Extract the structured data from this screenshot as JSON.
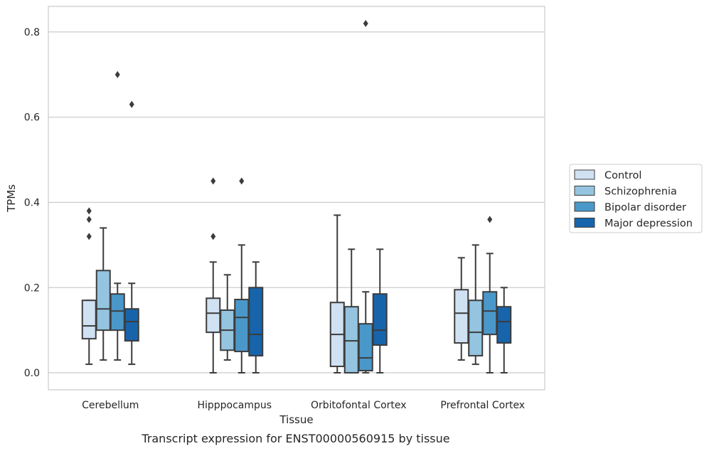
{
  "chart_data": {
    "type": "box",
    "title": "",
    "caption": "Transcript expression for ENST00000560915 by tissue",
    "xlabel": "Tissue",
    "ylabel": "TPMs",
    "ylim": [
      -0.04,
      0.86
    ],
    "yticks": [
      0.0,
      0.2,
      0.4,
      0.6,
      0.8
    ],
    "ytick_labels": [
      "0.0",
      "0.2",
      "0.4",
      "0.6",
      "0.8"
    ],
    "grid": true,
    "legend_position": "right",
    "categories": [
      "Cerebellum",
      "Hipppocampus",
      "Orbitofontal Cortex",
      "Prefrontal Cortex"
    ],
    "series": [
      {
        "name": "Control",
        "color": "#d0e1f2",
        "boxes": [
          {
            "whislo": 0.02,
            "q1": 0.08,
            "med": 0.11,
            "q3": 0.17,
            "whishi": 0.17,
            "fliers": [
              0.32,
              0.36,
              0.38
            ]
          },
          {
            "whislo": 0.0,
            "q1": 0.095,
            "med": 0.14,
            "q3": 0.175,
            "whishi": 0.26,
            "fliers": [
              0.32,
              0.45
            ]
          },
          {
            "whislo": 0.0,
            "q1": 0.015,
            "med": 0.09,
            "q3": 0.165,
            "whishi": 0.37,
            "fliers": []
          },
          {
            "whislo": 0.03,
            "q1": 0.07,
            "med": 0.14,
            "q3": 0.195,
            "whishi": 0.27,
            "fliers": []
          }
        ]
      },
      {
        "name": "Schizophrenia",
        "color": "#94c4df",
        "boxes": [
          {
            "whislo": 0.03,
            "q1": 0.1,
            "med": 0.15,
            "q3": 0.24,
            "whishi": 0.34,
            "fliers": []
          },
          {
            "whislo": 0.03,
            "q1": 0.053,
            "med": 0.1,
            "q3": 0.147,
            "whishi": 0.23,
            "fliers": []
          },
          {
            "whislo": 0.0,
            "q1": 0.0,
            "med": 0.075,
            "q3": 0.155,
            "whishi": 0.29,
            "fliers": []
          },
          {
            "whislo": 0.02,
            "q1": 0.04,
            "med": 0.095,
            "q3": 0.17,
            "whishi": 0.3,
            "fliers": []
          }
        ]
      },
      {
        "name": "Bipolar disorder",
        "color": "#4a98c9",
        "boxes": [
          {
            "whislo": 0.03,
            "q1": 0.1,
            "med": 0.145,
            "q3": 0.185,
            "whishi": 0.21,
            "fliers": [
              0.7
            ]
          },
          {
            "whislo": 0.0,
            "q1": 0.05,
            "med": 0.13,
            "q3": 0.172,
            "whishi": 0.3,
            "fliers": [
              0.45
            ]
          },
          {
            "whislo": 0.0,
            "q1": 0.005,
            "med": 0.035,
            "q3": 0.115,
            "whishi": 0.19,
            "fliers": [
              0.82
            ]
          },
          {
            "whislo": 0.0,
            "q1": 0.09,
            "med": 0.145,
            "q3": 0.19,
            "whishi": 0.28,
            "fliers": [
              0.36
            ]
          }
        ]
      },
      {
        "name": "Major depression",
        "color": "#1764ab",
        "boxes": [
          {
            "whislo": 0.02,
            "q1": 0.075,
            "med": 0.12,
            "q3": 0.15,
            "whishi": 0.21,
            "fliers": [
              0.63
            ]
          },
          {
            "whislo": 0.0,
            "q1": 0.04,
            "med": 0.09,
            "q3": 0.2,
            "whishi": 0.26,
            "fliers": []
          },
          {
            "whislo": 0.0,
            "q1": 0.065,
            "med": 0.1,
            "q3": 0.185,
            "whishi": 0.29,
            "fliers": []
          },
          {
            "whislo": 0.0,
            "q1": 0.07,
            "med": 0.12,
            "q3": 0.155,
            "whishi": 0.2,
            "fliers": []
          }
        ]
      }
    ]
  }
}
